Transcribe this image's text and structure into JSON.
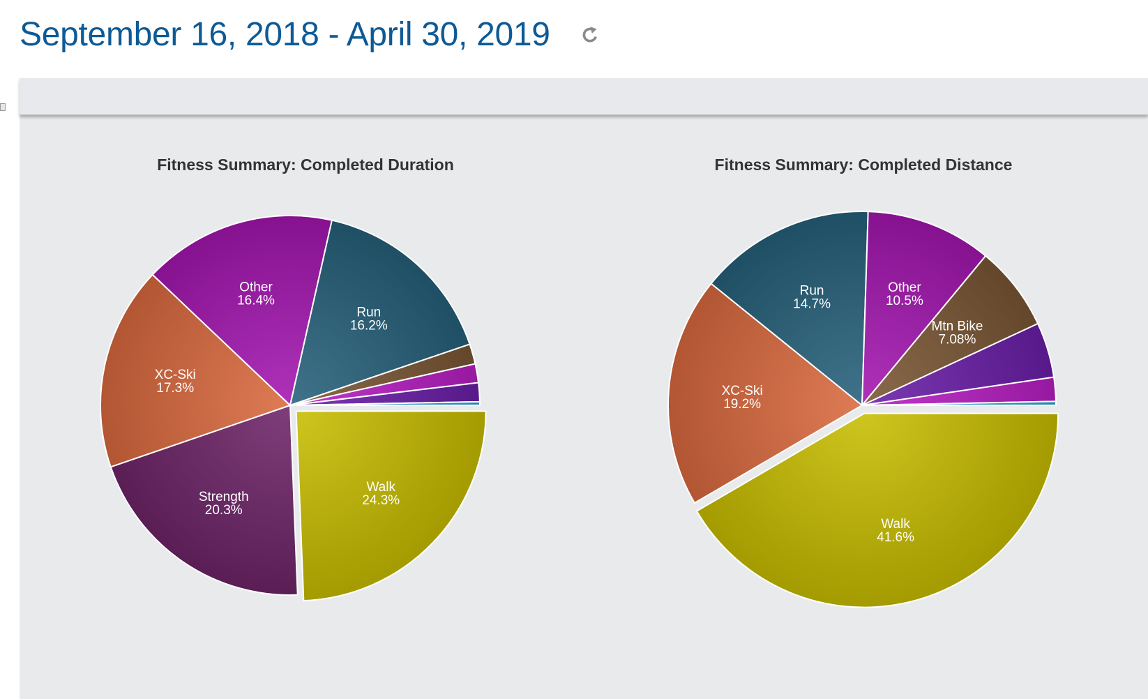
{
  "header": {
    "date_start": "September 16, 2018",
    "date_separator": " - ",
    "date_end": "April 30, 2019",
    "refresh_icon": "refresh-icon"
  },
  "colors": {
    "title_blue": "#0d5a96",
    "panel_bg": "#e9eaec",
    "walk": "#c7bd00",
    "strength": "#6e2468",
    "xcski": "#d9693e",
    "other": "#a316b0",
    "run": "#26607a",
    "mtnbike": "#7a5634",
    "magenta_small": "#b71ec3",
    "violet_small": "#6a1ea8",
    "cyan_small": "#2aa7d6"
  },
  "chart_data": [
    {
      "type": "pie",
      "title": "Fitness Summary: Completed Duration",
      "slices": [
        {
          "label": "Walk",
          "value": 24.3,
          "value_label": "24.3%",
          "color": "#c7bd00",
          "exploded": true,
          "show_label": true
        },
        {
          "label": "Strength",
          "value": 20.3,
          "value_label": "20.3%",
          "color": "#6e2468",
          "exploded": false,
          "show_label": true
        },
        {
          "label": "XC-Ski",
          "value": 17.3,
          "value_label": "17.3%",
          "color": "#d9693e",
          "exploded": false,
          "show_label": true
        },
        {
          "label": "Other",
          "value": 16.4,
          "value_label": "16.4%",
          "color": "#a316b0",
          "exploded": false,
          "show_label": true
        },
        {
          "label": "Run",
          "value": 16.2,
          "value_label": "16.2%",
          "color": "#26607a",
          "exploded": false,
          "show_label": true
        },
        {
          "label": "",
          "value": 1.7,
          "value_label": "",
          "color": "#7a5634",
          "exploded": false,
          "show_label": false
        },
        {
          "label": "",
          "value": 1.6,
          "value_label": "",
          "color": "#b71ec3",
          "exploded": false,
          "show_label": false
        },
        {
          "label": "",
          "value": 1.6,
          "value_label": "",
          "color": "#6a1ea8",
          "exploded": false,
          "show_label": false
        },
        {
          "label": "",
          "value": 0.3,
          "value_label": "",
          "color": "#2aa7d6",
          "exploded": false,
          "show_label": false
        }
      ]
    },
    {
      "type": "pie",
      "title": "Fitness Summary: Completed Distance",
      "slices": [
        {
          "label": "Walk",
          "value": 41.6,
          "value_label": "41.6%",
          "color": "#c7bd00",
          "exploded": true,
          "show_label": true
        },
        {
          "label": "XC-Ski",
          "value": 19.2,
          "value_label": "19.2%",
          "color": "#d9693e",
          "exploded": false,
          "show_label": true
        },
        {
          "label": "Run",
          "value": 14.7,
          "value_label": "14.7%",
          "color": "#26607a",
          "exploded": false,
          "show_label": true
        },
        {
          "label": "Other",
          "value": 10.5,
          "value_label": "10.5%",
          "color": "#a316b0",
          "exploded": false,
          "show_label": true
        },
        {
          "label": "Mtn Bike",
          "value": 7.08,
          "value_label": "7.08%",
          "color": "#7a5634",
          "exploded": false,
          "show_label": true
        },
        {
          "label": "",
          "value": 4.6,
          "value_label": "",
          "color": "#6a1ea8",
          "exploded": false,
          "show_label": false
        },
        {
          "label": "",
          "value": 2.0,
          "value_label": "",
          "color": "#b71ec3",
          "exploded": false,
          "show_label": false
        },
        {
          "label": "",
          "value": 0.32,
          "value_label": "",
          "color": "#2aa7d6",
          "exploded": false,
          "show_label": false
        }
      ]
    }
  ]
}
